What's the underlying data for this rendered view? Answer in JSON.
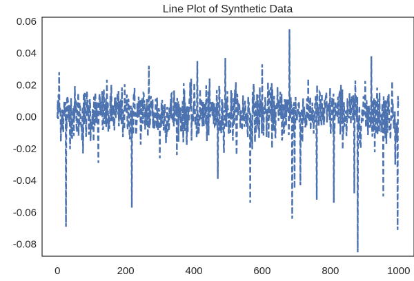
{
  "chart_data": {
    "type": "line",
    "title": "Line Plot of Synthetic Data",
    "xlabel": "",
    "ylabel": "",
    "xlim": [
      -45,
      1045
    ],
    "ylim": [
      -0.0875,
      0.0625
    ],
    "x_ticks": [
      0,
      200,
      400,
      600,
      800,
      1000
    ],
    "x_tick_labels": [
      "0",
      "200",
      "400",
      "600",
      "800",
      "1000"
    ],
    "y_ticks": [
      -0.08,
      -0.06,
      -0.04,
      -0.02,
      0.0,
      0.02,
      0.04,
      0.06
    ],
    "y_tick_labels": [
      "-0.08",
      "-0.06",
      "-0.04",
      "-0.02",
      "0.00",
      "0.02",
      "0.04",
      "0.06"
    ],
    "grid": false,
    "legend": "none",
    "series": [
      {
        "color": "#4c72b0",
        "line_style": "dashed",
        "n_points": 1000,
        "baseline": 0.002,
        "noise_std": 0.0085,
        "spikes": [
          {
            "x": 5,
            "y": 0.028
          },
          {
            "x": 25,
            "y": -0.069
          },
          {
            "x": 75,
            "y": -0.023
          },
          {
            "x": 120,
            "y": -0.029
          },
          {
            "x": 218,
            "y": -0.057
          },
          {
            "x": 268,
            "y": 0.032
          },
          {
            "x": 300,
            "y": -0.026
          },
          {
            "x": 410,
            "y": 0.035
          },
          {
            "x": 470,
            "y": -0.039
          },
          {
            "x": 492,
            "y": 0.037
          },
          {
            "x": 565,
            "y": -0.054
          },
          {
            "x": 600,
            "y": 0.033
          },
          {
            "x": 680,
            "y": 0.055
          },
          {
            "x": 688,
            "y": -0.064
          },
          {
            "x": 695,
            "y": -0.045
          },
          {
            "x": 712,
            "y": -0.043
          },
          {
            "x": 760,
            "y": -0.052
          },
          {
            "x": 810,
            "y": -0.054
          },
          {
            "x": 870,
            "y": -0.048
          },
          {
            "x": 880,
            "y": -0.085
          },
          {
            "x": 920,
            "y": 0.038
          },
          {
            "x": 955,
            "y": -0.05
          },
          {
            "x": 990,
            "y": -0.03
          },
          {
            "x": 997,
            "y": -0.071
          }
        ]
      }
    ]
  }
}
